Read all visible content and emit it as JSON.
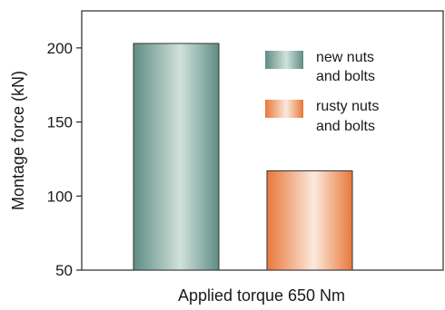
{
  "chart_data": {
    "type": "bar",
    "categories": [
      "new nuts and bolts",
      "rusty nuts and bolts"
    ],
    "values": [
      203,
      117
    ],
    "xlabel": "Applied torque 650 Nm",
    "ylabel": "Montage force (kN)",
    "ylim": [
      50,
      225
    ],
    "yticks": [
      50,
      100,
      150,
      200
    ],
    "grid": false,
    "legend": {
      "position": "top-right",
      "entries": [
        {
          "lines": [
            "new nuts",
            "and bolts"
          ],
          "color": "#5f8c84"
        },
        {
          "lines": [
            "rusty nuts",
            "and  bolts"
          ],
          "color": "#e8783a"
        }
      ]
    },
    "colors": {
      "bar_new_dark": "#5f8c84",
      "bar_new_light": "#cfe2db",
      "bar_rusty_dark": "#e8783a",
      "bar_rusty_light": "#fbe9dc"
    }
  }
}
